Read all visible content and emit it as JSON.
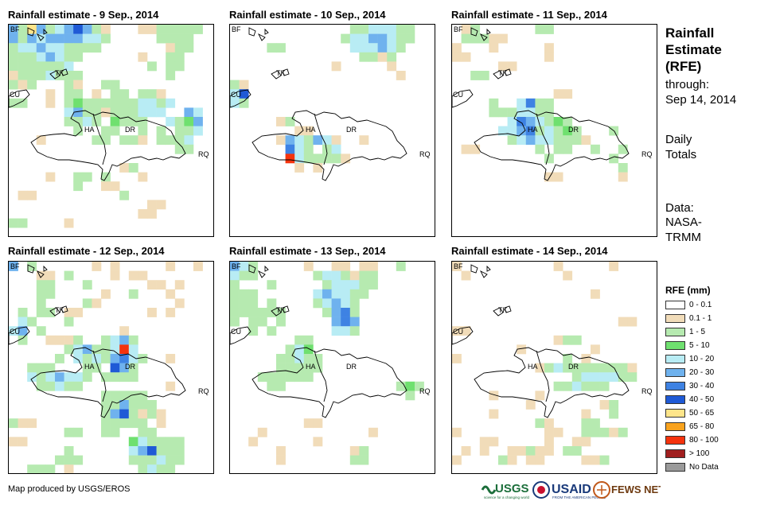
{
  "panels": [
    {
      "title": "Rainfall estimate - 9 Sep., 2014"
    },
    {
      "title": "Rainfall estimate - 10 Sep., 2014"
    },
    {
      "title": "Rainfall estimate - 11 Sep., 2014"
    },
    {
      "title": "Rainfall estimate - 12 Sep., 2014"
    },
    {
      "title": "Rainfall estimate - 13 Sep., 2014"
    },
    {
      "title": "Rainfall estimate - 14 Sep., 2014"
    }
  ],
  "map_labels": {
    "bf": "BF",
    "tk": "TK",
    "cu": "CU",
    "ha": "HA",
    "dr": "DR",
    "rq": "RQ"
  },
  "side": {
    "title_lines": [
      "Rainfall",
      "Estimate",
      "(RFE)"
    ],
    "through": "through:",
    "date": "Sep 14, 2014",
    "daily_1": "Daily",
    "daily_2": "Totals",
    "data_1": "Data:",
    "data_2": "NASA-",
    "data_3": "TRMM"
  },
  "legend": {
    "title": "RFE (mm)",
    "classes": [
      {
        "label": "0 - 0.1",
        "color": "#ffffff"
      },
      {
        "label": "0.1 - 1",
        "color": "#f1dcb9"
      },
      {
        "label": "1 - 5",
        "color": "#b6eab0"
      },
      {
        "label": "5 - 10",
        "color": "#6fe06f"
      },
      {
        "label": "10 - 20",
        "color": "#b8ecf4"
      },
      {
        "label": "20 - 30",
        "color": "#6fb2ee"
      },
      {
        "label": "30 - 40",
        "color": "#3e82e3"
      },
      {
        "label": "40 - 50",
        "color": "#1f5ad6"
      },
      {
        "label": "50 - 65",
        "color": "#fee58a"
      },
      {
        "label": "65 - 80",
        "color": "#f9a31e"
      },
      {
        "label": "80 - 100",
        "color": "#f5330d"
      },
      {
        "label": "> 100",
        "color": "#a11f1f"
      },
      {
        "label": "No Data",
        "color": "#9a9a9a"
      }
    ]
  },
  "credit": "Map produced by USGS/EROS",
  "logos": {
    "usgs": "USGS",
    "usgs_tag": "science for a changing world",
    "usaid": "USAID",
    "usaid_tag": "FROM THE AMERICAN PEOPLE",
    "fews": "FEWS NET"
  }
}
